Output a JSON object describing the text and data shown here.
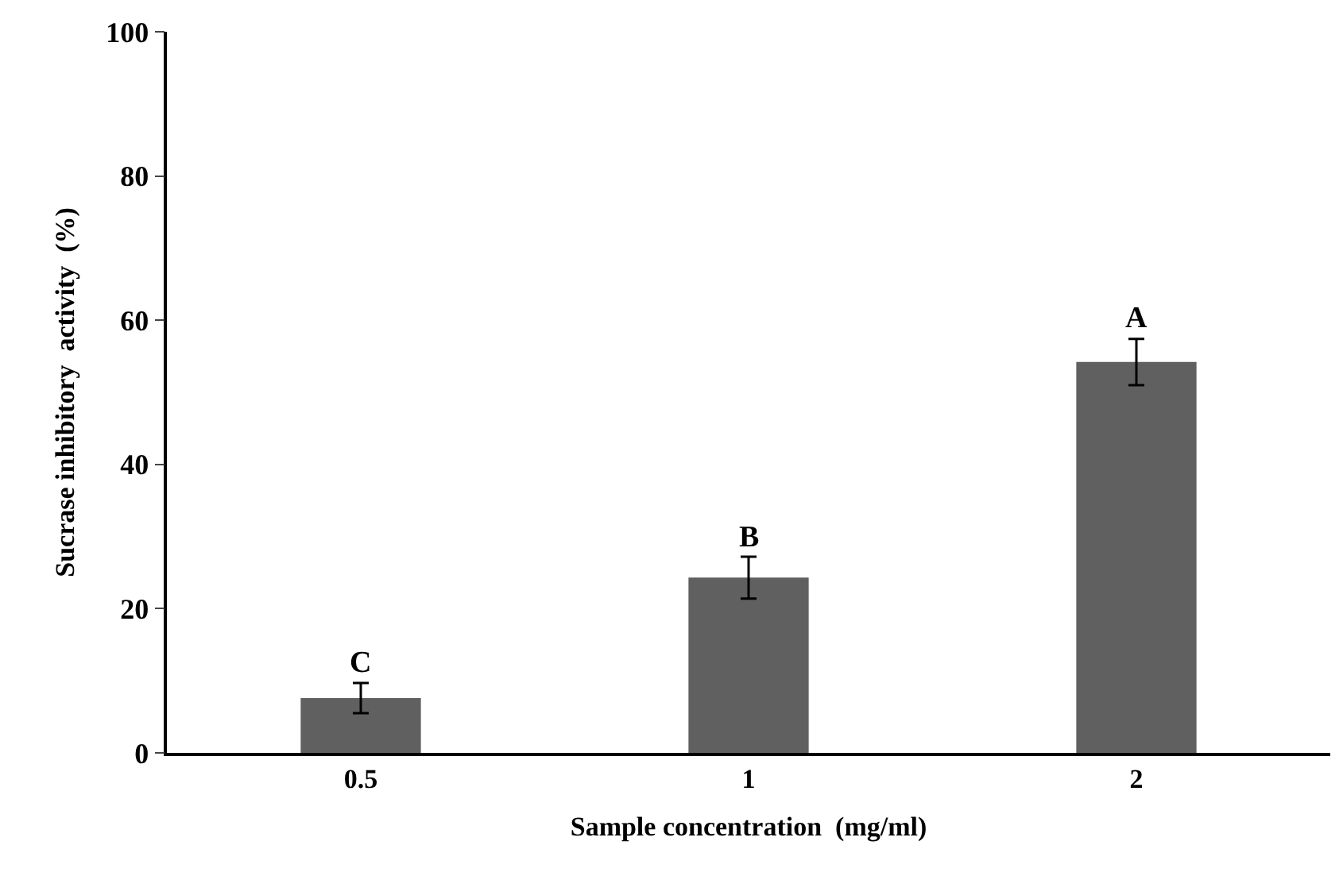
{
  "chart_data": {
    "type": "bar",
    "xlabel": "Sample concentration  (mg/ml)",
    "ylabel": "Sucrase inhibitory  activity  (%)",
    "categories": [
      "0.5",
      "1",
      "2"
    ],
    "values": [
      7.6,
      24.3,
      54.2
    ],
    "errors": [
      2.1,
      2.9,
      3.2
    ],
    "color": "#606060",
    "ylim": [
      0,
      100
    ],
    "yticks": [
      0,
      20,
      40,
      60,
      80,
      100
    ],
    "annotations": [
      {
        "text": "C",
        "x": "0.5",
        "y": 9.7
      },
      {
        "text": "B",
        "x": "1",
        "y": 27.2
      },
      {
        "text": "A",
        "x": "2",
        "y": 57.4
      }
    ]
  }
}
